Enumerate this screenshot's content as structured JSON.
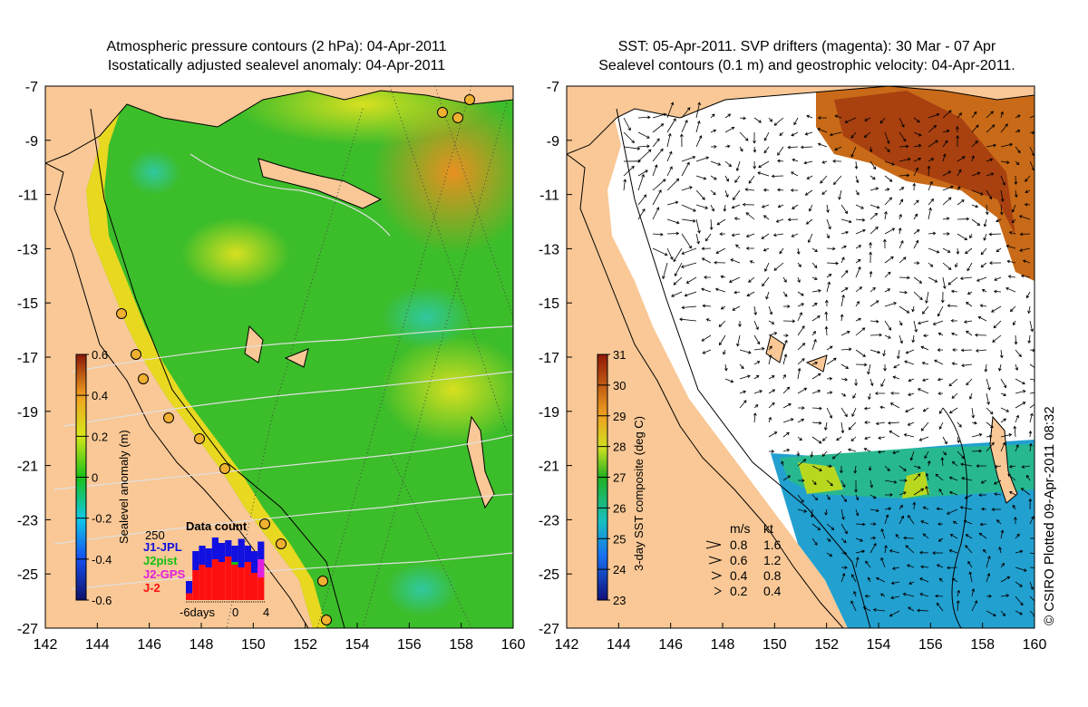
{
  "left_map": {
    "title_line1": "Atmospheric pressure contours (2 hPa): 04-Apr-2011",
    "title_line2": "Isostatically adjusted sealevel anomaly: 04-Apr-2011",
    "lat_ticks": [
      "-7",
      "-9",
      "-11",
      "-13",
      "-15",
      "-17",
      "-19",
      "-21",
      "-23",
      "-25",
      "-27"
    ],
    "lon_ticks": [
      "142",
      "144",
      "146",
      "148",
      "150",
      "152",
      "154",
      "156",
      "158",
      "160"
    ],
    "colorbar": {
      "label": "Sealevel anomaly (m)",
      "ticks": [
        "0.6",
        "0.4",
        "0.2",
        "0",
        "-0.2",
        "-0.4",
        "-0.6"
      ],
      "range": [
        -0.6,
        0.6
      ]
    },
    "data_count": {
      "title": "Data count",
      "ymax_label": "250",
      "axis_labels": [
        "-6days",
        "0",
        "4"
      ],
      "legend": [
        {
          "label": "J1-JPL",
          "color": "#1010e0"
        },
        {
          "label": "J2pist",
          "color": "#10c010"
        },
        {
          "label": "J2-GPS",
          "color": "#e020e0"
        },
        {
          "label": "J-2",
          "color": "#ff1010"
        }
      ],
      "bars": [
        {
          "total": 70,
          "red": 25
        },
        {
          "total": 180,
          "red": 110
        },
        {
          "total": 200,
          "red": 130
        },
        {
          "total": 190,
          "red": 120
        },
        {
          "total": 230,
          "red": 150
        },
        {
          "total": 210,
          "red": 140
        },
        {
          "total": 220,
          "red": 160
        },
        {
          "total": 200,
          "red": 130
        },
        {
          "total": 225,
          "red": 120
        },
        {
          "total": 200,
          "red": 140
        },
        {
          "total": 180,
          "red": 100
        },
        {
          "total": 215,
          "red": 130
        }
      ]
    }
  },
  "right_map": {
    "title_line1": "SST: 05-Apr-2011. SVP drifters (magenta): 30 Mar - 07 Apr",
    "title_line2": "Sealevel contours (0.1 m) and geostrophic velocity: 04-Apr-2011.",
    "lat_ticks": [
      "-7",
      "-9",
      "-11",
      "-13",
      "-15",
      "-17",
      "-19",
      "-21",
      "-23",
      "-25",
      "-27"
    ],
    "lon_ticks": [
      "142",
      "144",
      "146",
      "148",
      "150",
      "152",
      "154",
      "156",
      "158",
      "160"
    ],
    "colorbar": {
      "label": "3-day SST composite (deg C)",
      "ticks": [
        "31",
        "30",
        "29",
        "28",
        "27",
        "26",
        "25",
        "24",
        "23"
      ],
      "range": [
        23,
        31
      ]
    },
    "velocity_legend": {
      "header_ms": "m/s",
      "header_kt": "kt",
      "rows": [
        {
          "ms": "0.8",
          "kt": "1.6"
        },
        {
          "ms": "0.6",
          "kt": "1.2"
        },
        {
          "ms": "0.4",
          "kt": "0.8"
        },
        {
          "ms": "0.2",
          "kt": "0.4"
        }
      ]
    }
  },
  "credit": "© CSIRO Plotted 09-Apr-2011 08:32",
  "colors": {
    "land": "#f9c896",
    "background": "#ffffff"
  }
}
